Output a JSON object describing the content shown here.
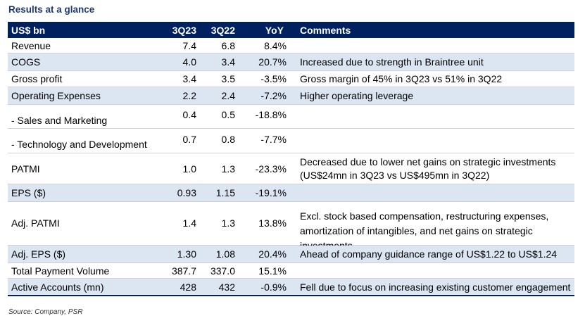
{
  "title": "Results at a glance",
  "header": {
    "metric": "US$ bn",
    "q3_23": "3Q23",
    "q3_22": "3Q22",
    "yoy": "YoY",
    "comments": "Comments"
  },
  "rows": [
    {
      "metric": "Revenue",
      "q3_23": "7.4",
      "q3_22": "6.8",
      "yoy": "8.4%",
      "comment": ""
    },
    {
      "metric": "COGS",
      "q3_23": "4.0",
      "q3_22": "3.4",
      "yoy": "20.7%",
      "comment": "Increased due to strength in Braintree unit"
    },
    {
      "metric": "Gross profit",
      "q3_23": "3.4",
      "q3_22": "3.5",
      "yoy": "-3.5%",
      "comment": "Gross margin of 45% in 3Q23 vs 51% in 3Q22"
    },
    {
      "metric": "Operating Expenses",
      "q3_23": "2.2",
      "q3_22": "2.4",
      "yoy": "-7.2%",
      "comment": "Higher operating leverage"
    },
    {
      "metric": " - Sales and Marketing",
      "q3_23": "0.4",
      "q3_22": "0.5",
      "yoy": "-18.8%",
      "comment": ""
    },
    {
      "metric": " - Technology and Development",
      "q3_23": "0.7",
      "q3_22": "0.8",
      "yoy": "-7.7%",
      "comment": ""
    },
    {
      "metric": "PATMI",
      "q3_23": "1.0",
      "q3_22": "1.3",
      "yoy": "-23.3%",
      "comment": "Decreased due to lower net gains on strategic investments",
      "comment2": "(US$24mn in 3Q23 vs US$495mn in 3Q22)"
    },
    {
      "metric": "EPS ($)",
      "q3_23": "0.93",
      "q3_22": "1.15",
      "yoy": "-19.1%",
      "comment": ""
    },
    {
      "metric": "Adj. PATMI",
      "q3_23": "1.4",
      "q3_22": "1.3",
      "yoy": "13.8%",
      "comment": "Excl. stock based compensation, restructuring expenses,",
      "comment2": "amortization of intangibles, and net gains on strategic investments"
    },
    {
      "metric": "Adj. EPS ($)",
      "q3_23": "1.30",
      "q3_22": "1.08",
      "yoy": "20.4%",
      "comment": "Ahead of company guidance range of US$1.22 to US$1.24"
    },
    {
      "metric": "Total Payment Volume",
      "q3_23": "387.7",
      "q3_22": "337.0",
      "yoy": "15.1%",
      "comment": ""
    },
    {
      "metric": "Active Accounts (mn)",
      "q3_23": "428",
      "q3_22": "432",
      "yoy": "-0.9%",
      "comment": "Fell due to focus on increasing existing customer engagement"
    }
  ],
  "source": "Source: Company, PSR"
}
